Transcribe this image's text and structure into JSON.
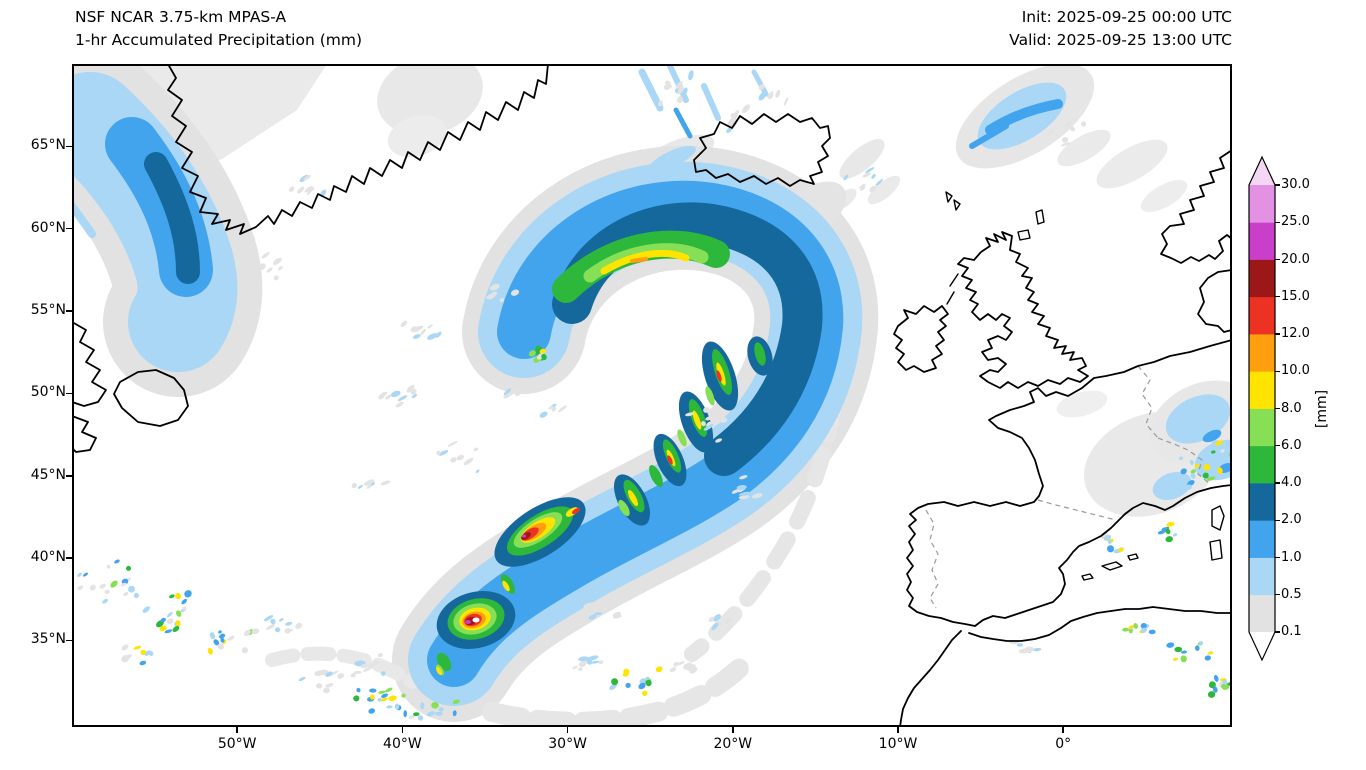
{
  "header": {
    "model": "NSF NCAR 3.75-km MPAS-A",
    "field": "1-hr Accumulated Precipitation (mm)",
    "init": "Init: 2025-09-25 00:00 UTC",
    "valid": "Valid: 2025-09-25 13:00 UTC"
  },
  "axes": {
    "lat_ticks": [
      {
        "value": 65,
        "label": "65°N"
      },
      {
        "value": 60,
        "label": "60°N"
      },
      {
        "value": 55,
        "label": "55°N"
      },
      {
        "value": 50,
        "label": "50°N"
      },
      {
        "value": 45,
        "label": "45°N"
      },
      {
        "value": 40,
        "label": "40°N"
      },
      {
        "value": 35,
        "label": "35°N"
      }
    ],
    "lon_ticks": [
      {
        "value": -50,
        "label": "50°W"
      },
      {
        "value": -40,
        "label": "40°W"
      },
      {
        "value": -30,
        "label": "30°W"
      },
      {
        "value": -20,
        "label": "20°W"
      },
      {
        "value": -10,
        "label": "10°W"
      },
      {
        "value": 0,
        "label": "0°"
      }
    ]
  },
  "colorbar": {
    "units": "[mm]",
    "levels": [
      "0.1",
      "0.5",
      "1.0",
      "2.0",
      "4.0",
      "6.0",
      "8.0",
      "10.0",
      "12.0",
      "15.0",
      "20.0",
      "25.0",
      "30.0"
    ],
    "colors": [
      "#e2e2e2",
      "#a9d7f5",
      "#42a4ed",
      "#15689b",
      "#2db83b",
      "#86df55",
      "#ffe400",
      "#ff9f0f",
      "#ec3323",
      "#9c1818",
      "#c93fc9",
      "#e391e3"
    ],
    "over_color": "#f4d7f4",
    "under_color": "#ffffff"
  },
  "chart_data": {
    "type": "map",
    "title": "NSF NCAR 3.75-km MPAS-A — 1-hr Accumulated Precipitation (mm)",
    "init_time": "2025-09-25 00:00 UTC",
    "valid_time": "2025-09-25 13:00 UTC",
    "units": "mm",
    "lon_range": [
      -60,
      10.2
    ],
    "lat_range": [
      29.8,
      70
    ],
    "levels_mm": [
      0.1,
      0.5,
      1.0,
      2.0,
      4.0,
      6.0,
      8.0,
      10.0,
      12.0,
      15.0,
      20.0,
      25.0,
      30.0
    ],
    "legend_position": "right vertical colorbar with extend triangles",
    "features": [
      "Large occluded cyclone over the central North Atlantic near 55-59N 20-30W: comma head with 4-10 mm/h core (green/yellow) around 58N 25-30W inside broad 1-4 mm/h (blue/dark blue) shield",
      "Trailing cold front from ~57N 22W curving southwest to ~36N 37W with embedded convective cells reaching 12-20 mm/h (red/dark red), strongest near 42N 32W and a hook-shaped cell near 36.5N 35.5W",
      "Moderate orographic precipitation band (1-4 mm/h) along southeast Greenland coast near 60-67N 40-55W",
      "Small disturbance northeast of the British Isles near 67N 0-5W with 0.5-2 mm/h",
      "Scattered weak showers (0.1-1 mm/h with isolated 4-8 mm/h cells) southeast of Newfoundland near 33-38N 45-55W and along 31-33N mid-Atlantic",
      "Light rain (0.1-2 mm/h) over northern France, Benelux and the Alps region, with isolated convective specks over eastern Spain, the Balearics and coastal Algeria/Morocco"
    ]
  }
}
